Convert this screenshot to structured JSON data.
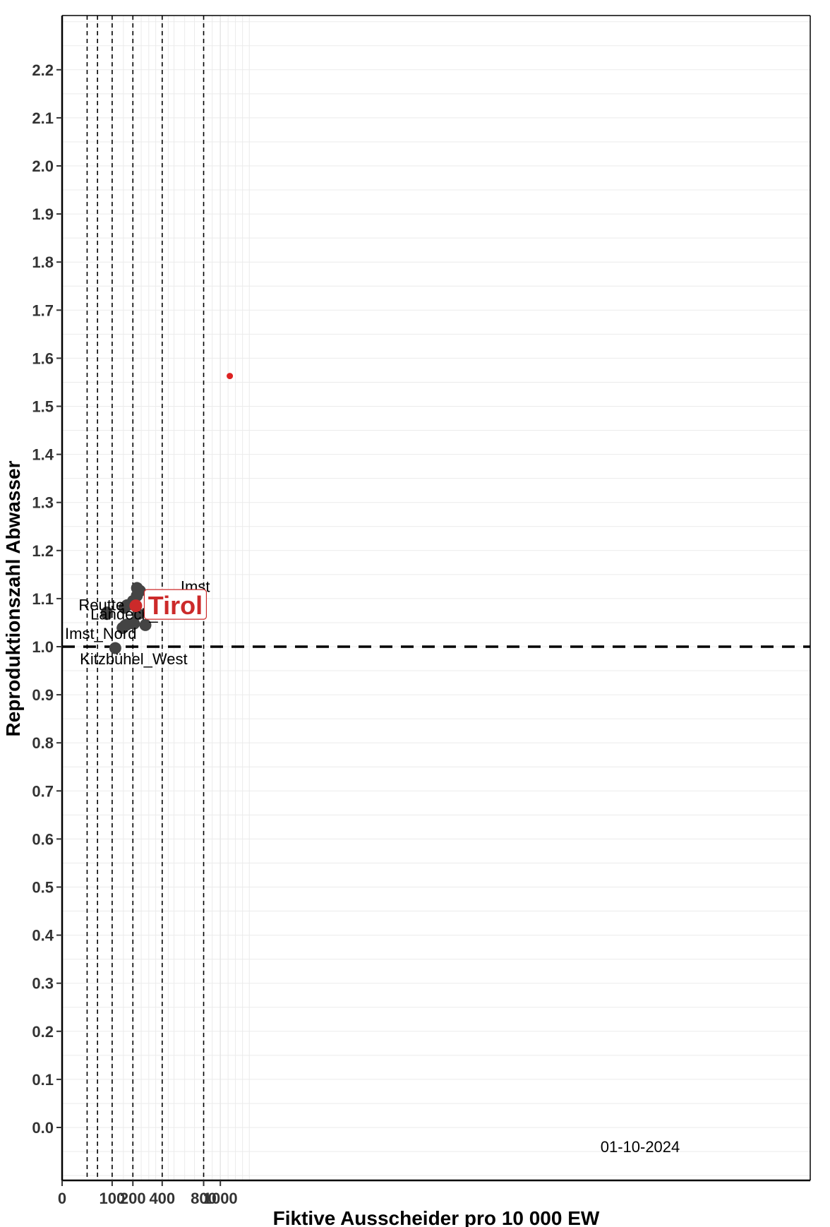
{
  "chart_data": {
    "type": "scatter",
    "xlabel": "Fiktive Ausscheider pro 10 000 EW",
    "ylabel": "Reproduktionszahl Abwasser",
    "xlim": [
      0,
      1500
    ],
    "ylim": [
      -0.1,
      2.33
    ],
    "x_ticks": [
      {
        "value": 0,
        "label": "0"
      },
      {
        "value": 100,
        "label": "100"
      },
      {
        "value": 200,
        "label": "200"
      },
      {
        "value": 400,
        "label": "400"
      },
      {
        "value": 800,
        "label": "800"
      },
      {
        "value": 1000,
        "label": "1000"
      }
    ],
    "y_ticks": [
      {
        "value": 0.0,
        "label": "0.0"
      },
      {
        "value": 0.1,
        "label": "0.1"
      },
      {
        "value": 0.2,
        "label": "0.2"
      },
      {
        "value": 0.3,
        "label": "0.3"
      },
      {
        "value": 0.4,
        "label": "0.4"
      },
      {
        "value": 0.5,
        "label": "0.5"
      },
      {
        "value": 0.6,
        "label": "0.6"
      },
      {
        "value": 0.7,
        "label": "0.7"
      },
      {
        "value": 0.8,
        "label": "0.8"
      },
      {
        "value": 0.9,
        "label": "0.9"
      },
      {
        "value": 1.0,
        "label": "1.0"
      },
      {
        "value": 1.1,
        "label": "1.1"
      },
      {
        "value": 1.2,
        "label": "1.2"
      },
      {
        "value": 1.3,
        "label": "1.3"
      },
      {
        "value": 1.4,
        "label": "1.4"
      },
      {
        "value": 1.5,
        "label": "1.5"
      },
      {
        "value": 1.6,
        "label": "1.6"
      },
      {
        "value": 1.7,
        "label": "1.7"
      },
      {
        "value": 1.8,
        "label": "1.8"
      },
      {
        "value": 1.9,
        "label": "1.9"
      },
      {
        "value": 2.0,
        "label": "2.0"
      },
      {
        "value": 2.1,
        "label": "2.1"
      },
      {
        "value": 2.2,
        "label": "2.2"
      }
    ],
    "vlines": [
      25,
      50,
      100,
      200,
      400,
      800
    ],
    "hline": 1.0,
    "grid": true,
    "colors": {
      "points": "#444444",
      "highlight": "#cc2a2a",
      "outlier": "#dd2222"
    },
    "points": [
      {
        "x": 80,
        "y": 1.068,
        "label": "Reutte"
      },
      {
        "x": 80,
        "y": 1.071,
        "label": ""
      },
      {
        "x": 155,
        "y": 1.081,
        "label": ""
      },
      {
        "x": 168,
        "y": 1.086,
        "label": ""
      },
      {
        "x": 201,
        "y": 1.095,
        "label": ""
      },
      {
        "x": 224,
        "y": 1.122,
        "label": ""
      },
      {
        "x": 242,
        "y": 1.116,
        "label": ""
      },
      {
        "x": 223,
        "y": 1.106,
        "label": ""
      },
      {
        "x": 337,
        "y": 1.101,
        "label": ""
      },
      {
        "x": 382,
        "y": 1.104,
        "label": ""
      },
      {
        "x": 635,
        "y": 1.105,
        "label": "Imst"
      },
      {
        "x": 146,
        "y": 1.039,
        "label": ""
      },
      {
        "x": 159,
        "y": 1.044,
        "label": ""
      },
      {
        "x": 168,
        "y": 1.046,
        "label": ""
      },
      {
        "x": 206,
        "y": 1.048,
        "label": ""
      },
      {
        "x": 277,
        "y": 1.045,
        "label": "Landeck_Ost"
      },
      {
        "x": 231,
        "y": 1.068,
        "label": ""
      },
      {
        "x": 113,
        "y": 0.997,
        "label": "Kitzbühel_West"
      }
    ],
    "extra_labels": [
      "Imst_Nord"
    ],
    "highlight": {
      "x": 217,
      "y": 1.085,
      "label": "Tirol"
    },
    "outlier": {
      "x": 1123,
      "y": 1.563
    },
    "annotation": "01-10-2024"
  }
}
